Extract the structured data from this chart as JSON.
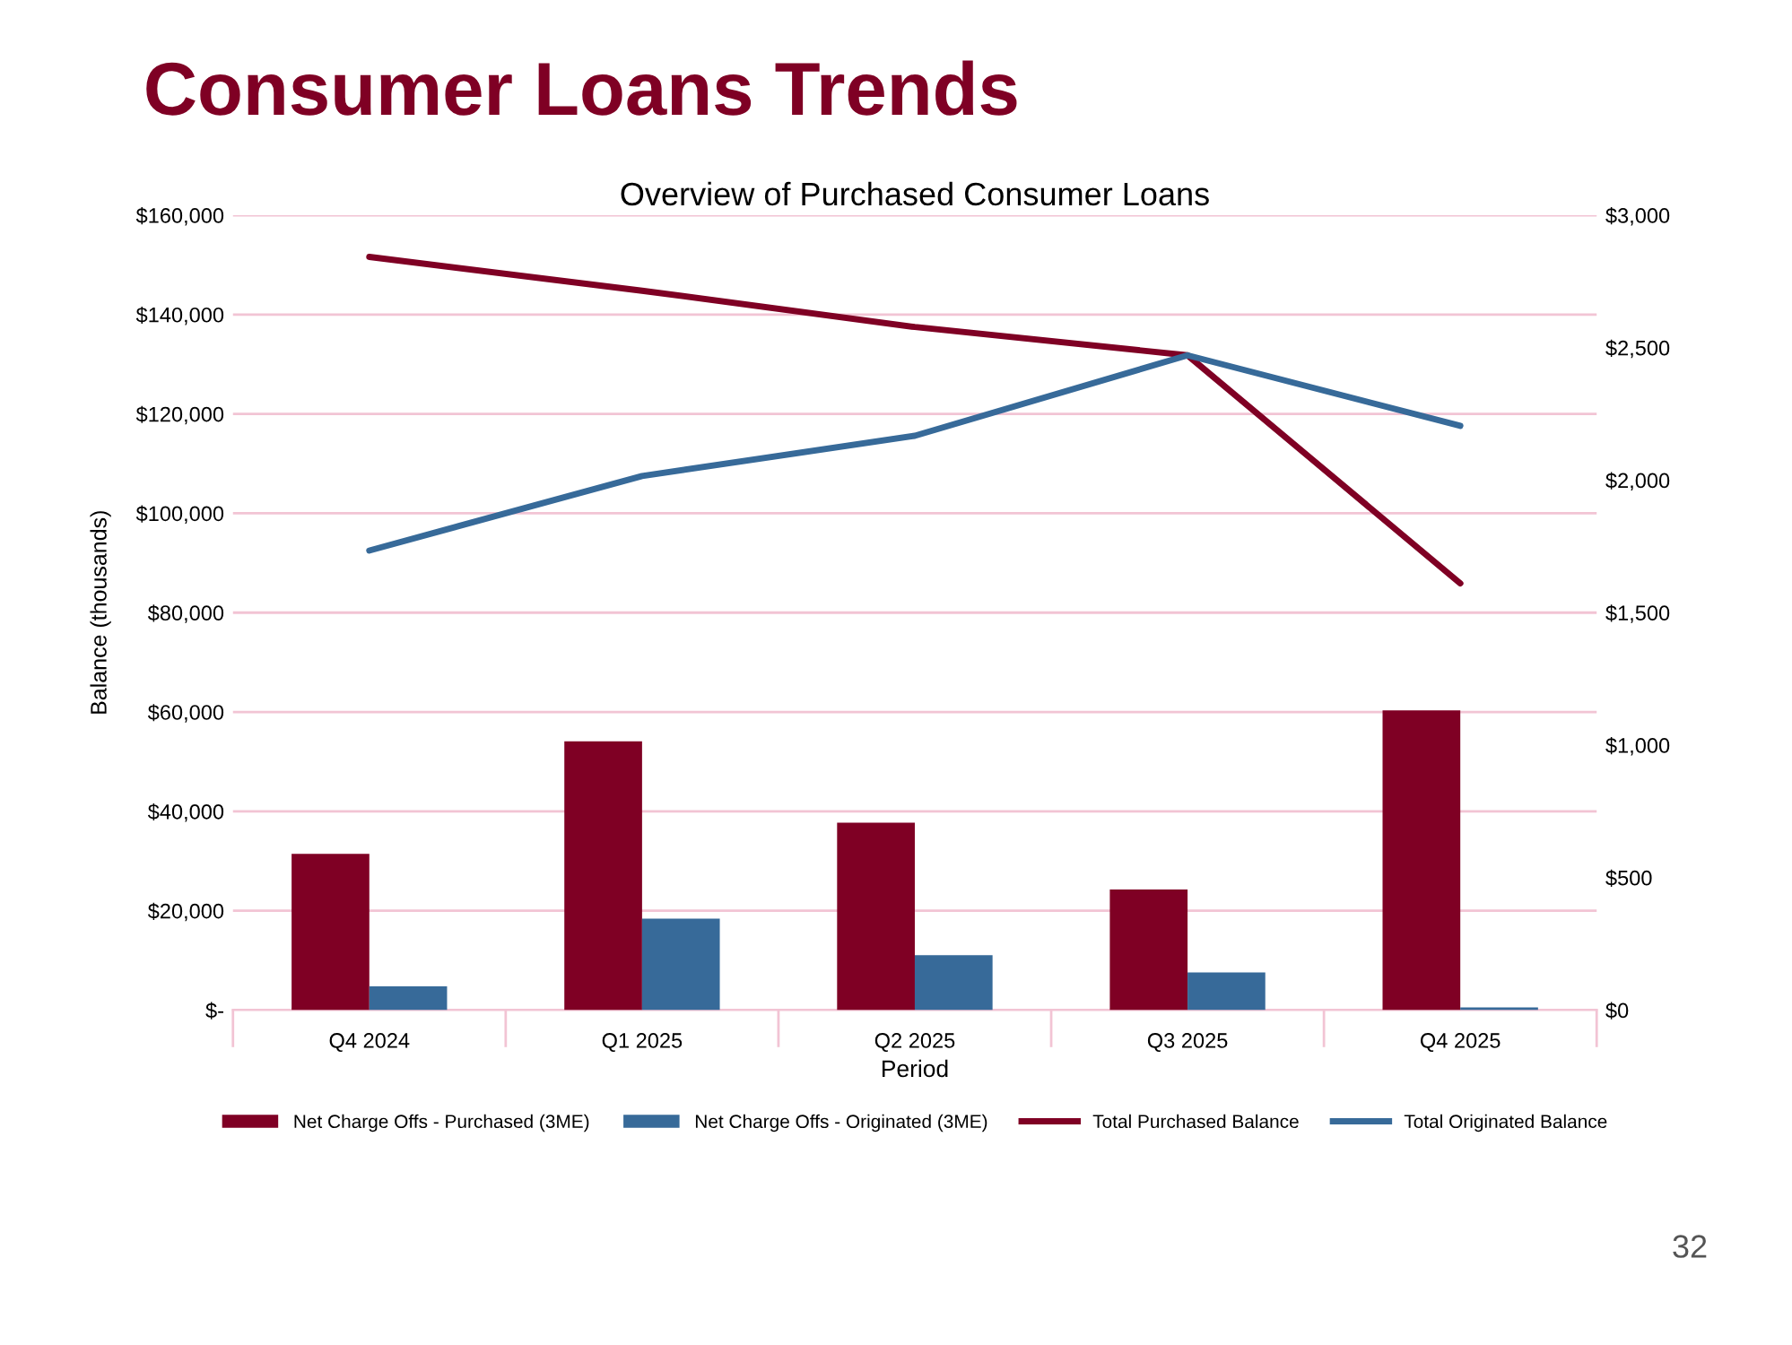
{
  "chart_data": {
    "type": "bar",
    "title": "Consumer Loans Trends",
    "subtitle": "Overview of Purchased Consumer Loans",
    "xlabel": "Period",
    "ylabel": "Balance (thousands)",
    "categories": [
      "Q4 2024",
      "Q1 2025",
      "Q2 2025",
      "Q3 2025",
      "Q4 2025"
    ],
    "series": [
      {
        "name": "Net Charge Offs - Purchased (3ME)",
        "axis": "y2",
        "color": "#7f0024",
        "values": [
          590,
          1014,
          707,
          455,
          1131
        ]
      },
      {
        "name": "Net Charge Offs - Originated (3ME)",
        "axis": "y2",
        "color": "#376a99",
        "values": [
          90,
          345,
          207,
          142,
          10
        ]
      },
      {
        "name": "Total Purchased Balance",
        "type": "line",
        "color": "#7f0024",
        "values": [
          151600,
          144800,
          137500,
          131800,
          85900
        ]
      },
      {
        "name": "Total Originated Balance",
        "type": "line",
        "color": "#376a99",
        "values": [
          92500,
          107500,
          115600,
          131800,
          117600
        ]
      }
    ],
    "ylim": [
      0,
      160000
    ],
    "yticks": [
      {
        "value": 0,
        "label": "$-"
      },
      {
        "value": 20000,
        "label": "$20,000"
      },
      {
        "value": 40000,
        "label": "$40,000"
      },
      {
        "value": 60000,
        "label": "$60,000"
      },
      {
        "value": 80000,
        "label": "$80,000"
      },
      {
        "value": 100000,
        "label": "$100,000"
      },
      {
        "value": 120000,
        "label": "$120,000"
      },
      {
        "value": 140000,
        "label": "$140,000"
      },
      {
        "value": 160000,
        "label": "$160,000"
      }
    ],
    "y2lim": [
      0,
      3000
    ],
    "y2ticks": [
      {
        "value": 0,
        "label": "$0"
      },
      {
        "value": 500,
        "label": "$500"
      },
      {
        "value": 1000,
        "label": "$1,000"
      },
      {
        "value": 1500,
        "label": "$1,500"
      },
      {
        "value": 2000,
        "label": "$2,000"
      },
      {
        "value": 2500,
        "label": "$2,500"
      },
      {
        "value": 3000,
        "label": "$3,000"
      }
    ],
    "grid": "y",
    "legend": "bottom",
    "marker": "none",
    "line_style": "solid",
    "annotations": [
      "32"
    ]
  }
}
